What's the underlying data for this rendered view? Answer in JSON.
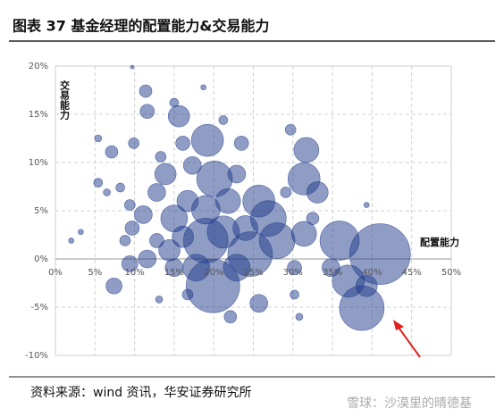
{
  "chart_data": {
    "type": "scatter",
    "title": "图表 37 基金经理的配置能力&交易能力",
    "x_label": "配置能力",
    "y_label": "交易能力",
    "source": "资料来源：wind 资讯，华安证券研究所",
    "color": "#1f3a8a",
    "grid": true,
    "xlim": [
      0,
      50
    ],
    "ylim": [
      -10,
      20
    ],
    "xticks": [
      {
        "value": 0,
        "label": "0%"
      },
      {
        "value": 5,
        "label": "5%"
      },
      {
        "value": 10,
        "label": "10%"
      },
      {
        "value": 15,
        "label": "15%"
      },
      {
        "value": 20,
        "label": "20%"
      },
      {
        "value": 25,
        "label": "25%"
      },
      {
        "value": 30,
        "label": "30%"
      },
      {
        "value": 35,
        "label": "35%"
      },
      {
        "value": 40,
        "label": "40%"
      },
      {
        "value": 45,
        "label": "45%"
      },
      {
        "value": 50,
        "label": "50%"
      }
    ],
    "yticks": [
      {
        "value": -10,
        "label": "-10%"
      },
      {
        "value": -5,
        "label": "-5%"
      },
      {
        "value": 0,
        "label": "0%"
      },
      {
        "value": 5,
        "label": "5%"
      },
      {
        "value": 10,
        "label": "10%"
      },
      {
        "value": 15,
        "label": "15%"
      },
      {
        "value": 20,
        "label": "20%"
      }
    ],
    "x": [
      41.0,
      35.9,
      38.7,
      37.0,
      39.3,
      31.4,
      31.4,
      31.7,
      33.1,
      29.7,
      19.2,
      20.1,
      19.9,
      19.0,
      24.6,
      26.9,
      25.7,
      28.0,
      15.0,
      16.7,
      12.8,
      11.1,
      13.9,
      15.6,
      16.1,
      11.6,
      11.4,
      15.0,
      9.9,
      7.1,
      5.4,
      5.4,
      6.5,
      8.2,
      9.4,
      9.7,
      8.8,
      9.4,
      7.4,
      11.6,
      12.8,
      14.4,
      22.9,
      21.8,
      22.9,
      23.5,
      21.2,
      25.7,
      30.2,
      30.8,
      22.1,
      16.7,
      13.1,
      3.2,
      2.0,
      9.7,
      18.7,
      32.5,
      34.8,
      30.2,
      17.8,
      21.2,
      24.0,
      17.3,
      13.3,
      19.0,
      15.0,
      16.1,
      29.1,
      39.3
    ],
    "values": [
      0.5,
      1.9,
      -5.1,
      -2.3,
      -2.8,
      2.6,
      8.3,
      11.3,
      6.9,
      13.4,
      12.3,
      8.3,
      -2.8,
      1.9,
      0.5,
      4.2,
      6.0,
      1.9,
      4.2,
      6.0,
      6.9,
      4.6,
      8.8,
      14.8,
      12.0,
      15.3,
      17.4,
      16.2,
      12.0,
      11.1,
      12.5,
      7.9,
      6.9,
      7.4,
      5.6,
      3.2,
      1.9,
      -0.5,
      -2.8,
      0.0,
      1.9,
      0.9,
      -0.9,
      6.0,
      8.8,
      12.0,
      14.4,
      -4.6,
      -3.7,
      -6.0,
      -6.0,
      -3.7,
      -4.2,
      2.8,
      1.9,
      19.9,
      17.8,
      4.2,
      -0.9,
      -0.9,
      -0.9,
      2.8,
      3.2,
      9.7,
      10.6,
      5.1,
      -0.9,
      2.3,
      6.9,
      5.6
    ],
    "sizes": [
      34,
      22,
      25,
      18,
      12,
      14,
      18,
      14,
      12,
      6,
      18,
      20,
      30,
      25,
      25,
      20,
      18,
      20,
      15,
      12,
      10,
      10,
      12,
      12,
      8,
      8,
      7,
      5,
      6,
      7,
      4,
      5,
      4,
      5,
      6,
      8,
      6,
      9,
      9,
      10,
      8,
      12,
      15,
      14,
      10,
      8,
      5,
      10,
      5,
      4,
      7,
      6,
      4,
      3,
      3,
      2,
      3,
      7,
      10,
      8,
      15,
      18,
      14,
      10,
      6,
      16,
      10,
      12,
      6,
      3
    ]
  },
  "watermark": "雪球：沙漠里的晴德基"
}
